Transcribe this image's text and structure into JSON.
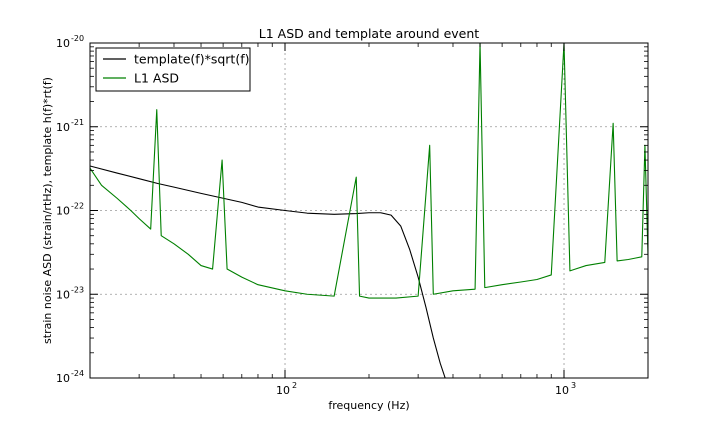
{
  "chart_data": {
    "type": "line",
    "title": "L1 ASD and template around event",
    "xlabel": "frequency (Hz)",
    "ylabel": "strain noise ASD (strain/rtHz), template h(f)*rt(f)",
    "xscale": "log",
    "yscale": "log",
    "xlim": [
      20,
      2000
    ],
    "ylim": [
      1e-24,
      1e-20
    ],
    "grid": true,
    "legend_position": "top-left",
    "x_ticks": [
      {
        "value": 100,
        "label": "10",
        "exp": "2"
      },
      {
        "value": 1000,
        "label": "10",
        "exp": "3"
      }
    ],
    "y_ticks": [
      {
        "value": 1e-24,
        "label": "10",
        "exp": "-24"
      },
      {
        "value": 1e-23,
        "label": "10",
        "exp": "-23"
      },
      {
        "value": 1e-22,
        "label": "10",
        "exp": "-22"
      },
      {
        "value": 1e-21,
        "label": "10",
        "exp": "-21"
      },
      {
        "value": 1e-20,
        "label": "10",
        "exp": "-20"
      }
    ],
    "series": [
      {
        "name": "template(f)*sqrt(f)",
        "color": "#000000",
        "points": [
          [
            20,
            3.4e-22
          ],
          [
            25,
            2.8e-22
          ],
          [
            30,
            2.4e-22
          ],
          [
            35,
            2.1e-22
          ],
          [
            40,
            1.9e-22
          ],
          [
            50,
            1.6e-22
          ],
          [
            60,
            1.4e-22
          ],
          [
            70,
            1.25e-22
          ],
          [
            80,
            1.1e-22
          ],
          [
            100,
            1e-22
          ],
          [
            120,
            9.3e-23
          ],
          [
            150,
            9e-23
          ],
          [
            180,
            9.2e-23
          ],
          [
            200,
            9.4e-23
          ],
          [
            220,
            9.4e-23
          ],
          [
            240,
            8.8e-23
          ],
          [
            260,
            6.5e-23
          ],
          [
            280,
            3.4e-23
          ],
          [
            300,
            1.6e-23
          ],
          [
            320,
            7e-24
          ],
          [
            340,
            3e-24
          ],
          [
            360,
            1.5e-24
          ],
          [
            375,
            1e-24
          ]
        ]
      },
      {
        "name": "L1 ASD",
        "color": "#008000",
        "points": [
          [
            20,
            3.2e-22
          ],
          [
            22,
            2e-22
          ],
          [
            25,
            1.4e-22
          ],
          [
            28,
            1e-22
          ],
          [
            30,
            8e-23
          ],
          [
            33,
            6e-23
          ],
          [
            34.7,
            1.6e-21
          ],
          [
            36,
            5e-23
          ],
          [
            40,
            4e-23
          ],
          [
            45,
            3e-23
          ],
          [
            50,
            2.2e-23
          ],
          [
            55,
            2e-23
          ],
          [
            59.5,
            4e-22
          ],
          [
            62,
            2e-23
          ],
          [
            70,
            1.6e-23
          ],
          [
            80,
            1.3e-23
          ],
          [
            100,
            1.1e-23
          ],
          [
            120,
            1e-23
          ],
          [
            150,
            9.5e-24
          ],
          [
            180,
            2.5e-22
          ],
          [
            185,
            9.5e-24
          ],
          [
            200,
            9e-24
          ],
          [
            250,
            9e-24
          ],
          [
            300,
            9.5e-24
          ],
          [
            330,
            6e-22
          ],
          [
            340,
            1e-23
          ],
          [
            400,
            1.1e-23
          ],
          [
            480,
            1.15e-23
          ],
          [
            500,
            1e-20
          ],
          [
            520,
            1.2e-23
          ],
          [
            600,
            1.3e-23
          ],
          [
            700,
            1.4e-23
          ],
          [
            800,
            1.5e-23
          ],
          [
            900,
            1.7e-23
          ],
          [
            1000,
            1e-20
          ],
          [
            1050,
            1.9e-23
          ],
          [
            1100,
            2e-23
          ],
          [
            1200,
            2.2e-23
          ],
          [
            1300,
            2.3e-23
          ],
          [
            1400,
            2.4e-23
          ],
          [
            1500,
            1.1e-21
          ],
          [
            1550,
            2.5e-23
          ],
          [
            1700,
            2.6e-23
          ],
          [
            1800,
            2.7e-23
          ],
          [
            1900,
            2.8e-23
          ],
          [
            1950,
            6e-22
          ],
          [
            2000,
            2.9e-23
          ]
        ]
      }
    ]
  }
}
